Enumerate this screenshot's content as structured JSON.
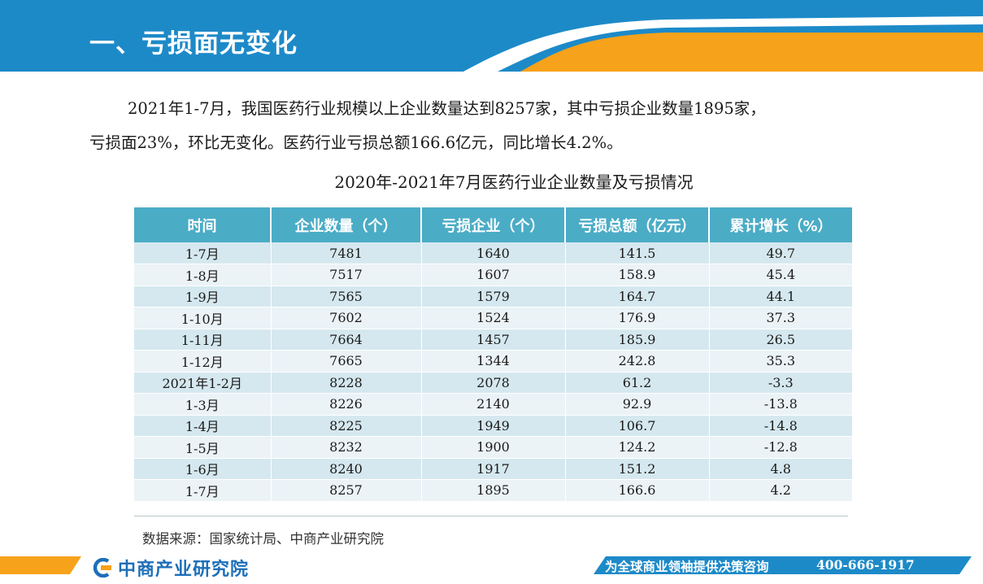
{
  "header": {
    "title": "一、亏损面无变化"
  },
  "intro": {
    "line1": "2021年1-7月，我国医药行业规模以上企业数量达到8257家，其中亏损企业数量1895家，",
    "line2": "亏损面23%，环比无变化。医药行业亏损总额166.6亿元，同比增长4.2%。"
  },
  "table": {
    "title": "2020年-2021年7月医药行业企业数量及亏损情况",
    "headers": [
      "时间",
      "企业数量（个）",
      "亏损企业（个）",
      "亏损总额（亿元）",
      "累计增长（%）"
    ],
    "rows": [
      [
        "1-7月",
        "7481",
        "1640",
        "141.5",
        "49.7"
      ],
      [
        "1-8月",
        "7517",
        "1607",
        "158.9",
        "45.4"
      ],
      [
        "1-9月",
        "7565",
        "1579",
        "164.7",
        "44.1"
      ],
      [
        "1-10月",
        "7602",
        "1524",
        "176.9",
        "37.3"
      ],
      [
        "1-11月",
        "7664",
        "1457",
        "185.9",
        "26.5"
      ],
      [
        "1-12月",
        "7665",
        "1344",
        "242.8",
        "35.3"
      ],
      [
        "2021年1-2月",
        "8228",
        "2078",
        "61.2",
        "-3.3"
      ],
      [
        "1-3月",
        "8226",
        "2140",
        "92.9",
        "-13.8"
      ],
      [
        "1-4月",
        "8225",
        "1949",
        "106.7",
        "-14.8"
      ],
      [
        "1-5月",
        "8232",
        "1900",
        "124.2",
        "-12.8"
      ],
      [
        "1-6月",
        "8240",
        "1917",
        "151.2",
        "4.8"
      ],
      [
        "1-7月",
        "8257",
        "1895",
        "166.6",
        "4.2"
      ]
    ]
  },
  "source": "数据来源：国家统计局、中商产业研究院",
  "footer": {
    "logo": "中商产业研究院",
    "slogan": "为全球商业领袖提供决策咨询",
    "phone": "400-666-1917"
  },
  "colors": {
    "brand_blue": "#1d8ac8",
    "accent_orange": "#f7a21b",
    "table_header": "#4bacc6"
  }
}
